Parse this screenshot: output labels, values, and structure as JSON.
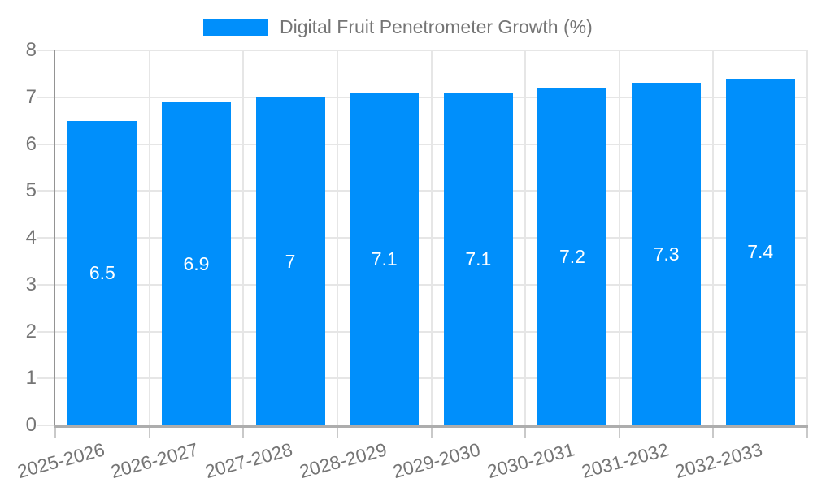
{
  "legend": {
    "label": "Digital Fruit Penetrometer Growth (%)",
    "position": "top"
  },
  "chart_data": {
    "type": "bar",
    "title": "",
    "xlabel": "",
    "ylabel": "",
    "categories": [
      "2025-2026",
      "2026-2027",
      "2027-2028",
      "2028-2029",
      "2029-2030",
      "2030-2031",
      "2031-2032",
      "2032-2033"
    ],
    "series": [
      {
        "name": "Digital Fruit Penetrometer Growth (%)",
        "values": [
          6.5,
          6.9,
          7,
          7.1,
          7.1,
          7.2,
          7.3,
          7.4
        ]
      }
    ],
    "value_labels": [
      "6.5",
      "6.9",
      "7",
      "7.1",
      "7.1",
      "7.2",
      "7.3",
      "7.4"
    ],
    "ylim": [
      0,
      8
    ],
    "yticks": [
      0,
      1,
      2,
      3,
      4,
      5,
      6,
      7,
      8
    ],
    "grid": true,
    "legend_position": "top",
    "x_label_rotation_deg": -15,
    "colors": {
      "bar": "#008FFB",
      "grid": "#e6e6e6",
      "axis_y": "#949494",
      "axis_x": "#adadad",
      "tick": "#c9c9c9",
      "text": "#757575",
      "value_text": "#ffffff",
      "background": "#ffffff"
    }
  }
}
